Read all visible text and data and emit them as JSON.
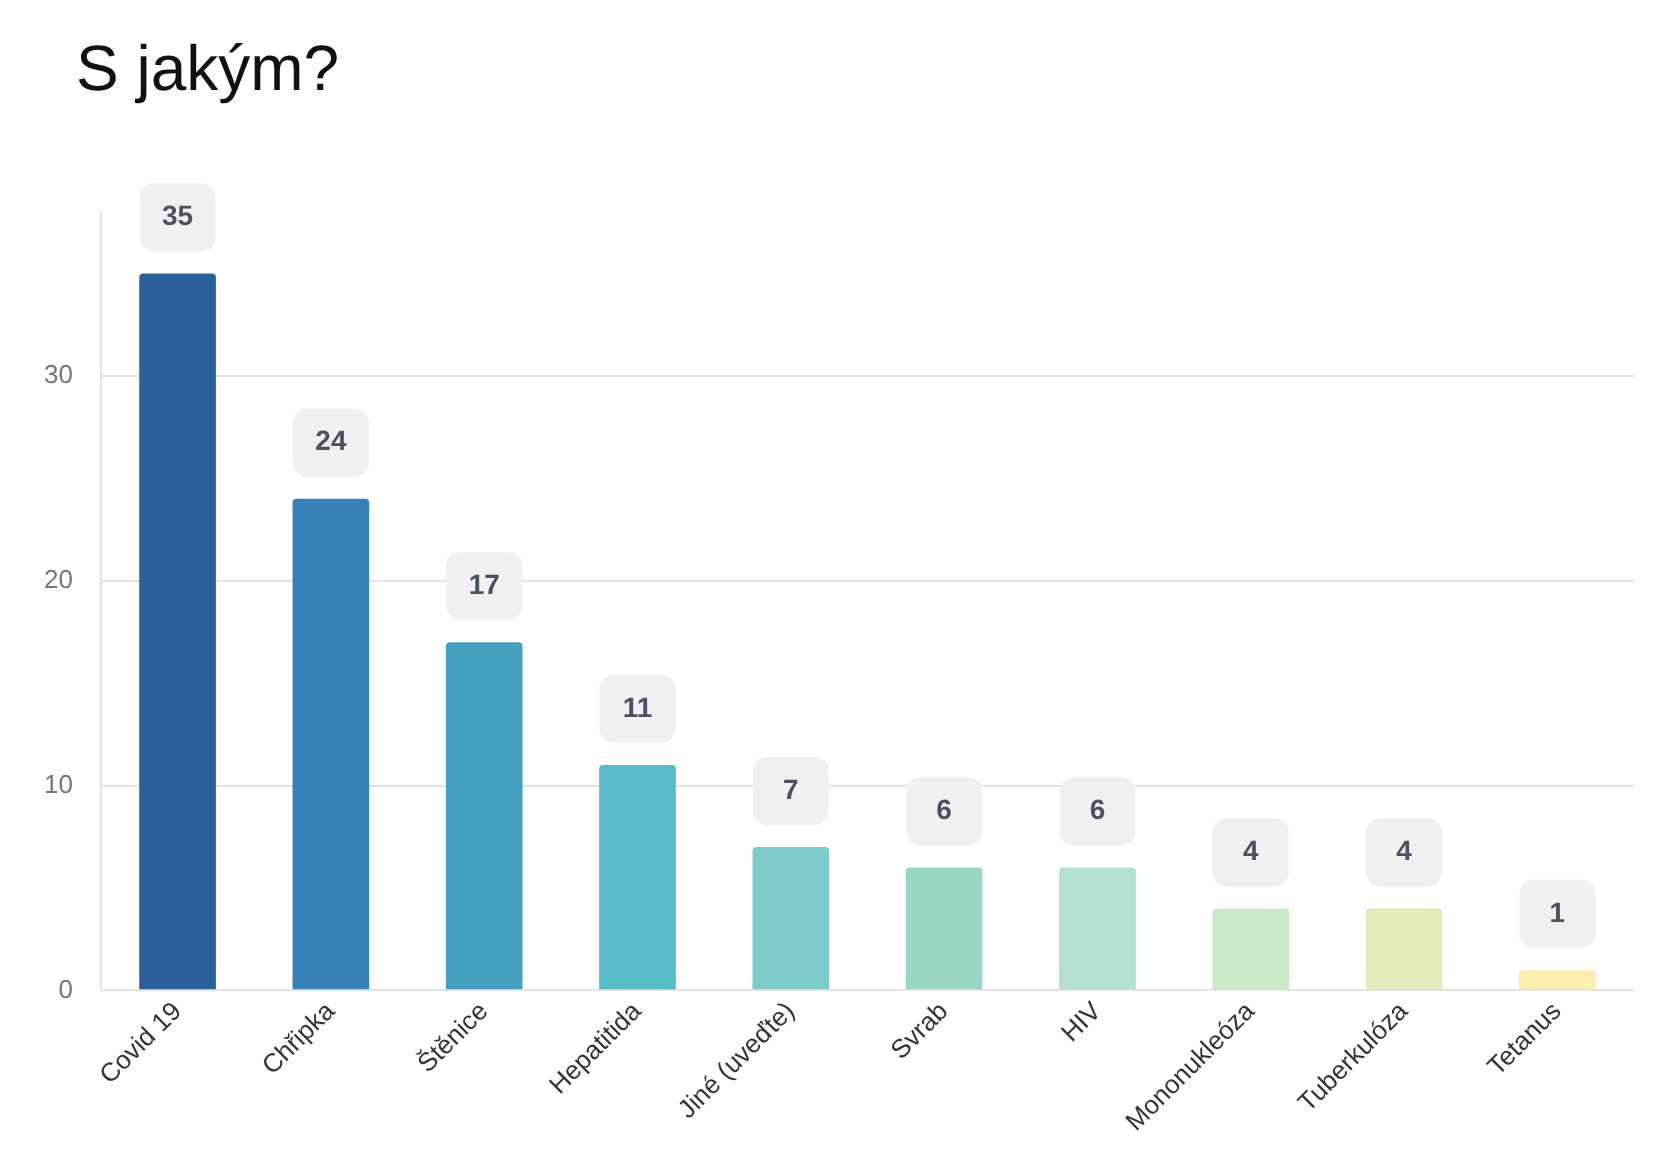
{
  "chart_data": {
    "type": "bar",
    "title": "S jakým?",
    "categories": [
      "Covid 19",
      "Chřipka",
      "Štěnice",
      "Hepatitida",
      "Jiné (uveďte)",
      "Svrab",
      "HIV",
      "Mononukleóza",
      "Tuberkulóza",
      "Tetanus"
    ],
    "values": [
      35,
      24,
      17,
      11,
      7,
      6,
      6,
      4,
      4,
      1
    ],
    "colors": [
      "#2a6099",
      "#3581b8",
      "#45a0c0",
      "#55bcc8",
      "#7ccbc8",
      "#98d6c8",
      "#b3e0d0",
      "#c9e8c8",
      "#e2ecba",
      "#fbeeb0"
    ],
    "ylim": [
      0,
      38
    ],
    "yticks": [
      0,
      10,
      20,
      30
    ],
    "grid": "y",
    "data_labels": true
  }
}
